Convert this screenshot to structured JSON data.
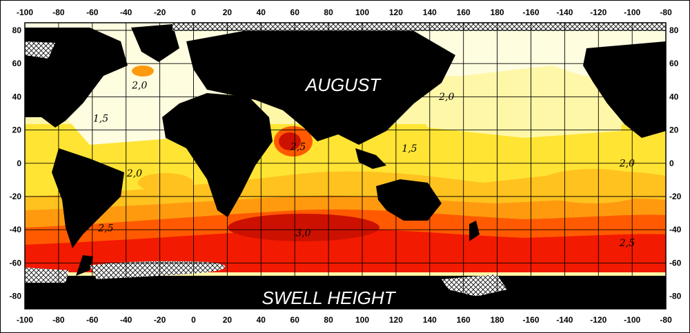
{
  "map": {
    "month_label": "AUGUST",
    "variable_label": "SWELL HEIGHT",
    "top_lon_ticks": [
      "-100",
      "-80",
      "-60",
      "-40",
      "-20",
      "0",
      "20",
      "40",
      "60",
      "80",
      "100",
      "120",
      "140",
      "160",
      "180",
      "-160",
      "-140",
      "-120",
      "-100",
      "-80"
    ],
    "bottom_lon_ticks": [
      "-100",
      "-80",
      "-60",
      "-40",
      "-20",
      "0",
      "20",
      "40",
      "60",
      "80",
      "100",
      "120",
      "140",
      "160",
      "180",
      "-160",
      "-140",
      "-120",
      "-100",
      "-80"
    ],
    "left_lat_ticks": [
      "80",
      "60",
      "40",
      "20",
      "0",
      "-20",
      "-40",
      "-60",
      "-80"
    ],
    "right_lat_ticks": [
      "80",
      "60",
      "40",
      "20",
      "0",
      "-20",
      "-40",
      "-60",
      "-80"
    ],
    "contour_labels": [
      {
        "text": "2,0",
        "lon": -32,
        "lat": 45
      },
      {
        "text": "1,5",
        "lon": -55,
        "lat": 25
      },
      {
        "text": "2,0",
        "lon": -35,
        "lat": -8
      },
      {
        "text": "2,5",
        "lon": -52,
        "lat": -41
      },
      {
        "text": "2,5",
        "lon": 62,
        "lat": 8
      },
      {
        "text": "3,0",
        "lon": 65,
        "lat": -44
      },
      {
        "text": "1,5",
        "lon": 128,
        "lat": 7
      },
      {
        "text": "2,0",
        "lon": 150,
        "lat": 38
      },
      {
        "text": "2,0",
        "lon": -103,
        "lat": -2
      },
      {
        "text": "2,5",
        "lon": -103,
        "lat": -50
      }
    ],
    "colors": {
      "land": "#000000",
      "level_1_0": "#fffde0",
      "level_1_5": "#fff7a8",
      "level_2_0": "#ffe433",
      "level_2_2": "#ffc21e",
      "level_2_5": "#ff9a0f",
      "level_2_8": "#ff5a00",
      "level_3_0": "#f21a00",
      "level_3_2": "#cc1100",
      "ice": "#ffffff",
      "grid": "#000000"
    }
  }
}
